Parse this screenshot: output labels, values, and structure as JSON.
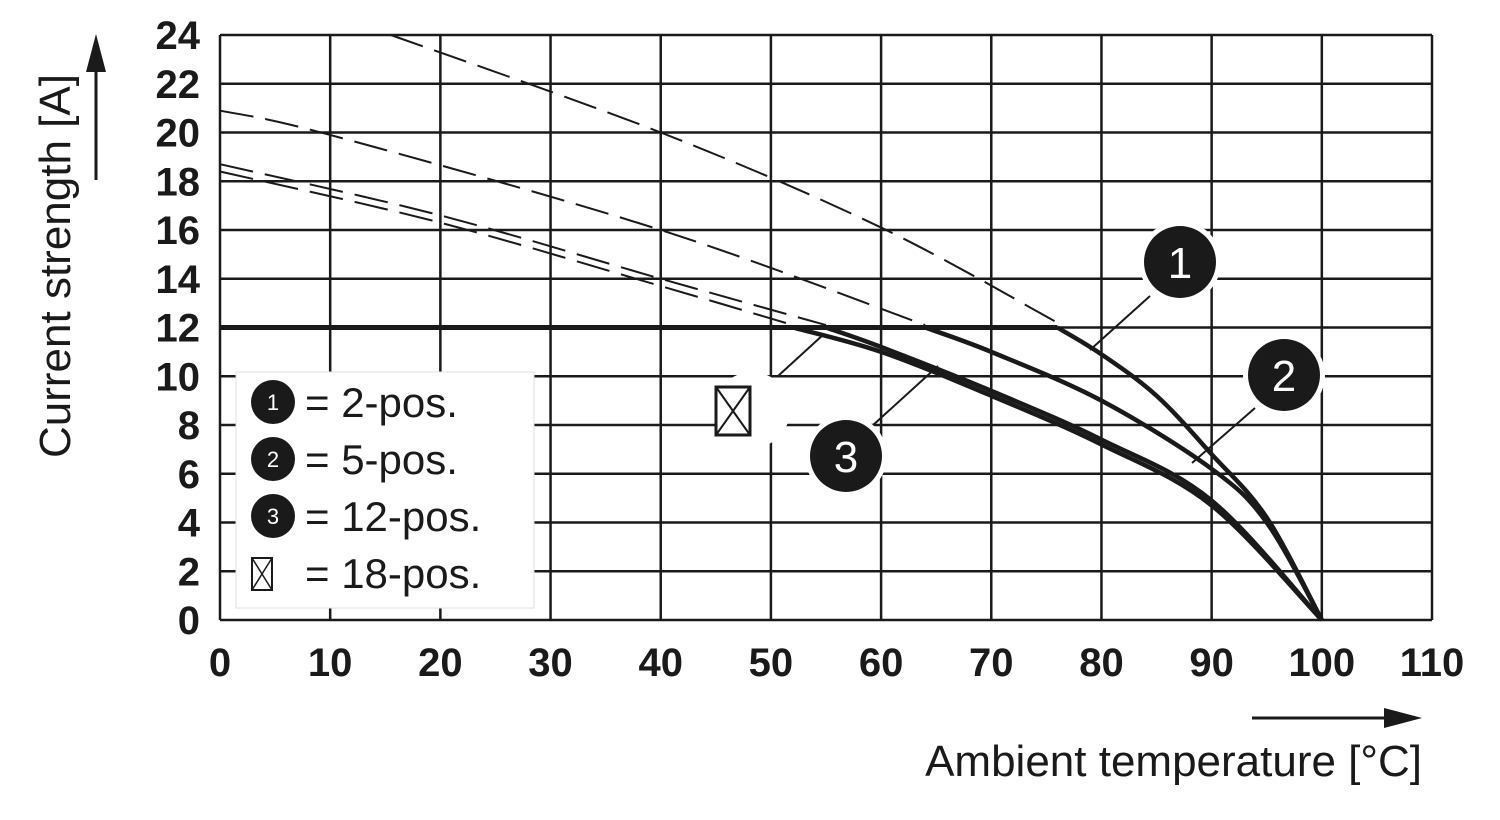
{
  "chart_data": {
    "type": "line",
    "xlabel": "Ambient temperature [°C]",
    "ylabel": "Current strength [A]",
    "xlim": [
      0,
      110
    ],
    "ylim": [
      0,
      24
    ],
    "x_ticks": [
      "0",
      "10",
      "20",
      "30",
      "40",
      "50",
      "60",
      "70",
      "80",
      "90",
      "100",
      "110"
    ],
    "y_ticks": [
      "0",
      "2",
      "4",
      "6",
      "8",
      "10",
      "12",
      "14",
      "16",
      "18",
      "20",
      "22",
      "24"
    ],
    "grid": true,
    "legend_position": "bottom-left",
    "current_limit": 12,
    "max_temperature": 100,
    "legend": [
      {
        "marker": "1",
        "label": "= 2-pos."
      },
      {
        "marker": "2",
        "label": "= 5-pos."
      },
      {
        "marker": "3",
        "label": "= 12-pos."
      },
      {
        "marker": "18-pos-symbol",
        "label": "= 18-pos."
      }
    ],
    "series": [
      {
        "name": "2-pos.",
        "marker": "1",
        "derating_from": [
          [
            15.5,
            24
          ],
          [
            40,
            20
          ],
          [
            60,
            16.1
          ],
          [
            76,
            12.2
          ]
        ],
        "x": [
          0,
          76,
          80,
          85,
          90,
          95,
          100
        ],
        "y": [
          12,
          12,
          10.9,
          9.2,
          6.8,
          4.2,
          0
        ]
      },
      {
        "name": "5-pos.",
        "marker": "2",
        "derating_from": [
          [
            0,
            20.9
          ],
          [
            10,
            19.9
          ],
          [
            40,
            16.0
          ],
          [
            64,
            12.1
          ]
        ],
        "x": [
          0,
          64,
          70,
          80,
          90,
          95,
          100
        ],
        "y": [
          12,
          12,
          11.0,
          9.0,
          6.2,
          4.0,
          0
        ]
      },
      {
        "name": "12-pos.",
        "marker": "3",
        "derating_from": [
          [
            0,
            18.7
          ],
          [
            20,
            16.6
          ],
          [
            40,
            14.0
          ],
          [
            55,
            12.1
          ]
        ],
        "x": [
          0,
          55,
          60,
          70,
          80,
          90,
          100
        ],
        "y": [
          12,
          12,
          11.2,
          9.4,
          7.4,
          4.9,
          0
        ]
      },
      {
        "name": "18-pos.",
        "marker": "18-pos-symbol",
        "derating_from": [
          [
            0,
            18.4
          ],
          [
            20,
            16.3
          ],
          [
            40,
            13.7
          ],
          [
            52,
            12.1
          ]
        ],
        "x": [
          0,
          52,
          60,
          70,
          80,
          90,
          100
        ],
        "y": [
          12,
          12,
          11.0,
          9.2,
          7.2,
          4.7,
          0
        ]
      }
    ],
    "callouts": [
      "1",
      "2",
      "3"
    ]
  },
  "colors": {
    "ink": "#1a1a1a",
    "background": "#ffffff",
    "grid": "#1a1a1a"
  }
}
